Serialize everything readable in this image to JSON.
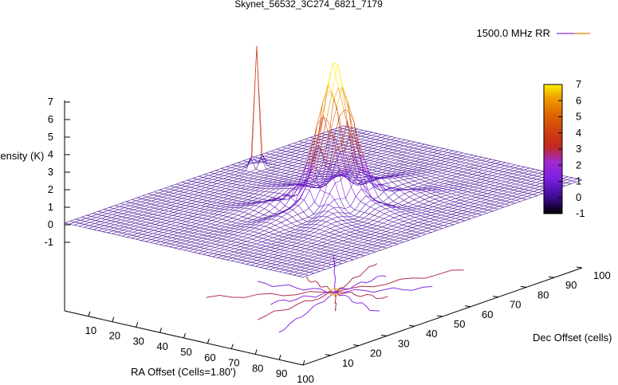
{
  "chart_data": {
    "type": "surface3d",
    "title": "Skynet_56532_3C274_6821_7179",
    "xlabel": "RA Offset (Cells=1.80')",
    "ylabel": "Dec Offset (cells)",
    "zlabel": "Intensity (K)",
    "xlim": [
      0,
      100
    ],
    "ylim": [
      0,
      100
    ],
    "zlim": [
      -1,
      7
    ],
    "xticks": [
      "10",
      "20",
      "30",
      "40",
      "50",
      "60",
      "70",
      "80",
      "90",
      "100"
    ],
    "yticks": [
      "10",
      "20",
      "30",
      "40",
      "50",
      "60",
      "70",
      "80",
      "90",
      "100"
    ],
    "zticks": [
      "-1",
      "0",
      "1",
      "2",
      "3",
      "4",
      "5",
      "6",
      "7"
    ],
    "colorbar": {
      "range": [
        -1,
        7
      ],
      "ticks": [
        "-1",
        "0",
        "1",
        "2",
        "3",
        "4",
        "5",
        "6",
        "7"
      ],
      "colors": [
        "#000000",
        "#3b0b8c",
        "#7a1fe0",
        "#a02bd0",
        "#c02a20",
        "#d04010",
        "#e06a00",
        "#f0a000",
        "#ffee00"
      ]
    },
    "legend": {
      "label": "1500.0 MHz RR",
      "position": "top-right"
    },
    "series": [
      {
        "name": "1500.0 MHz RR",
        "peak": {
          "x": 55,
          "y": 50,
          "z": 7
        },
        "secondary_peak": {
          "x": 8,
          "y": 62,
          "z": 6.9
        },
        "baseline": 0.1
      }
    ],
    "grid": false,
    "contour_projection": true
  }
}
